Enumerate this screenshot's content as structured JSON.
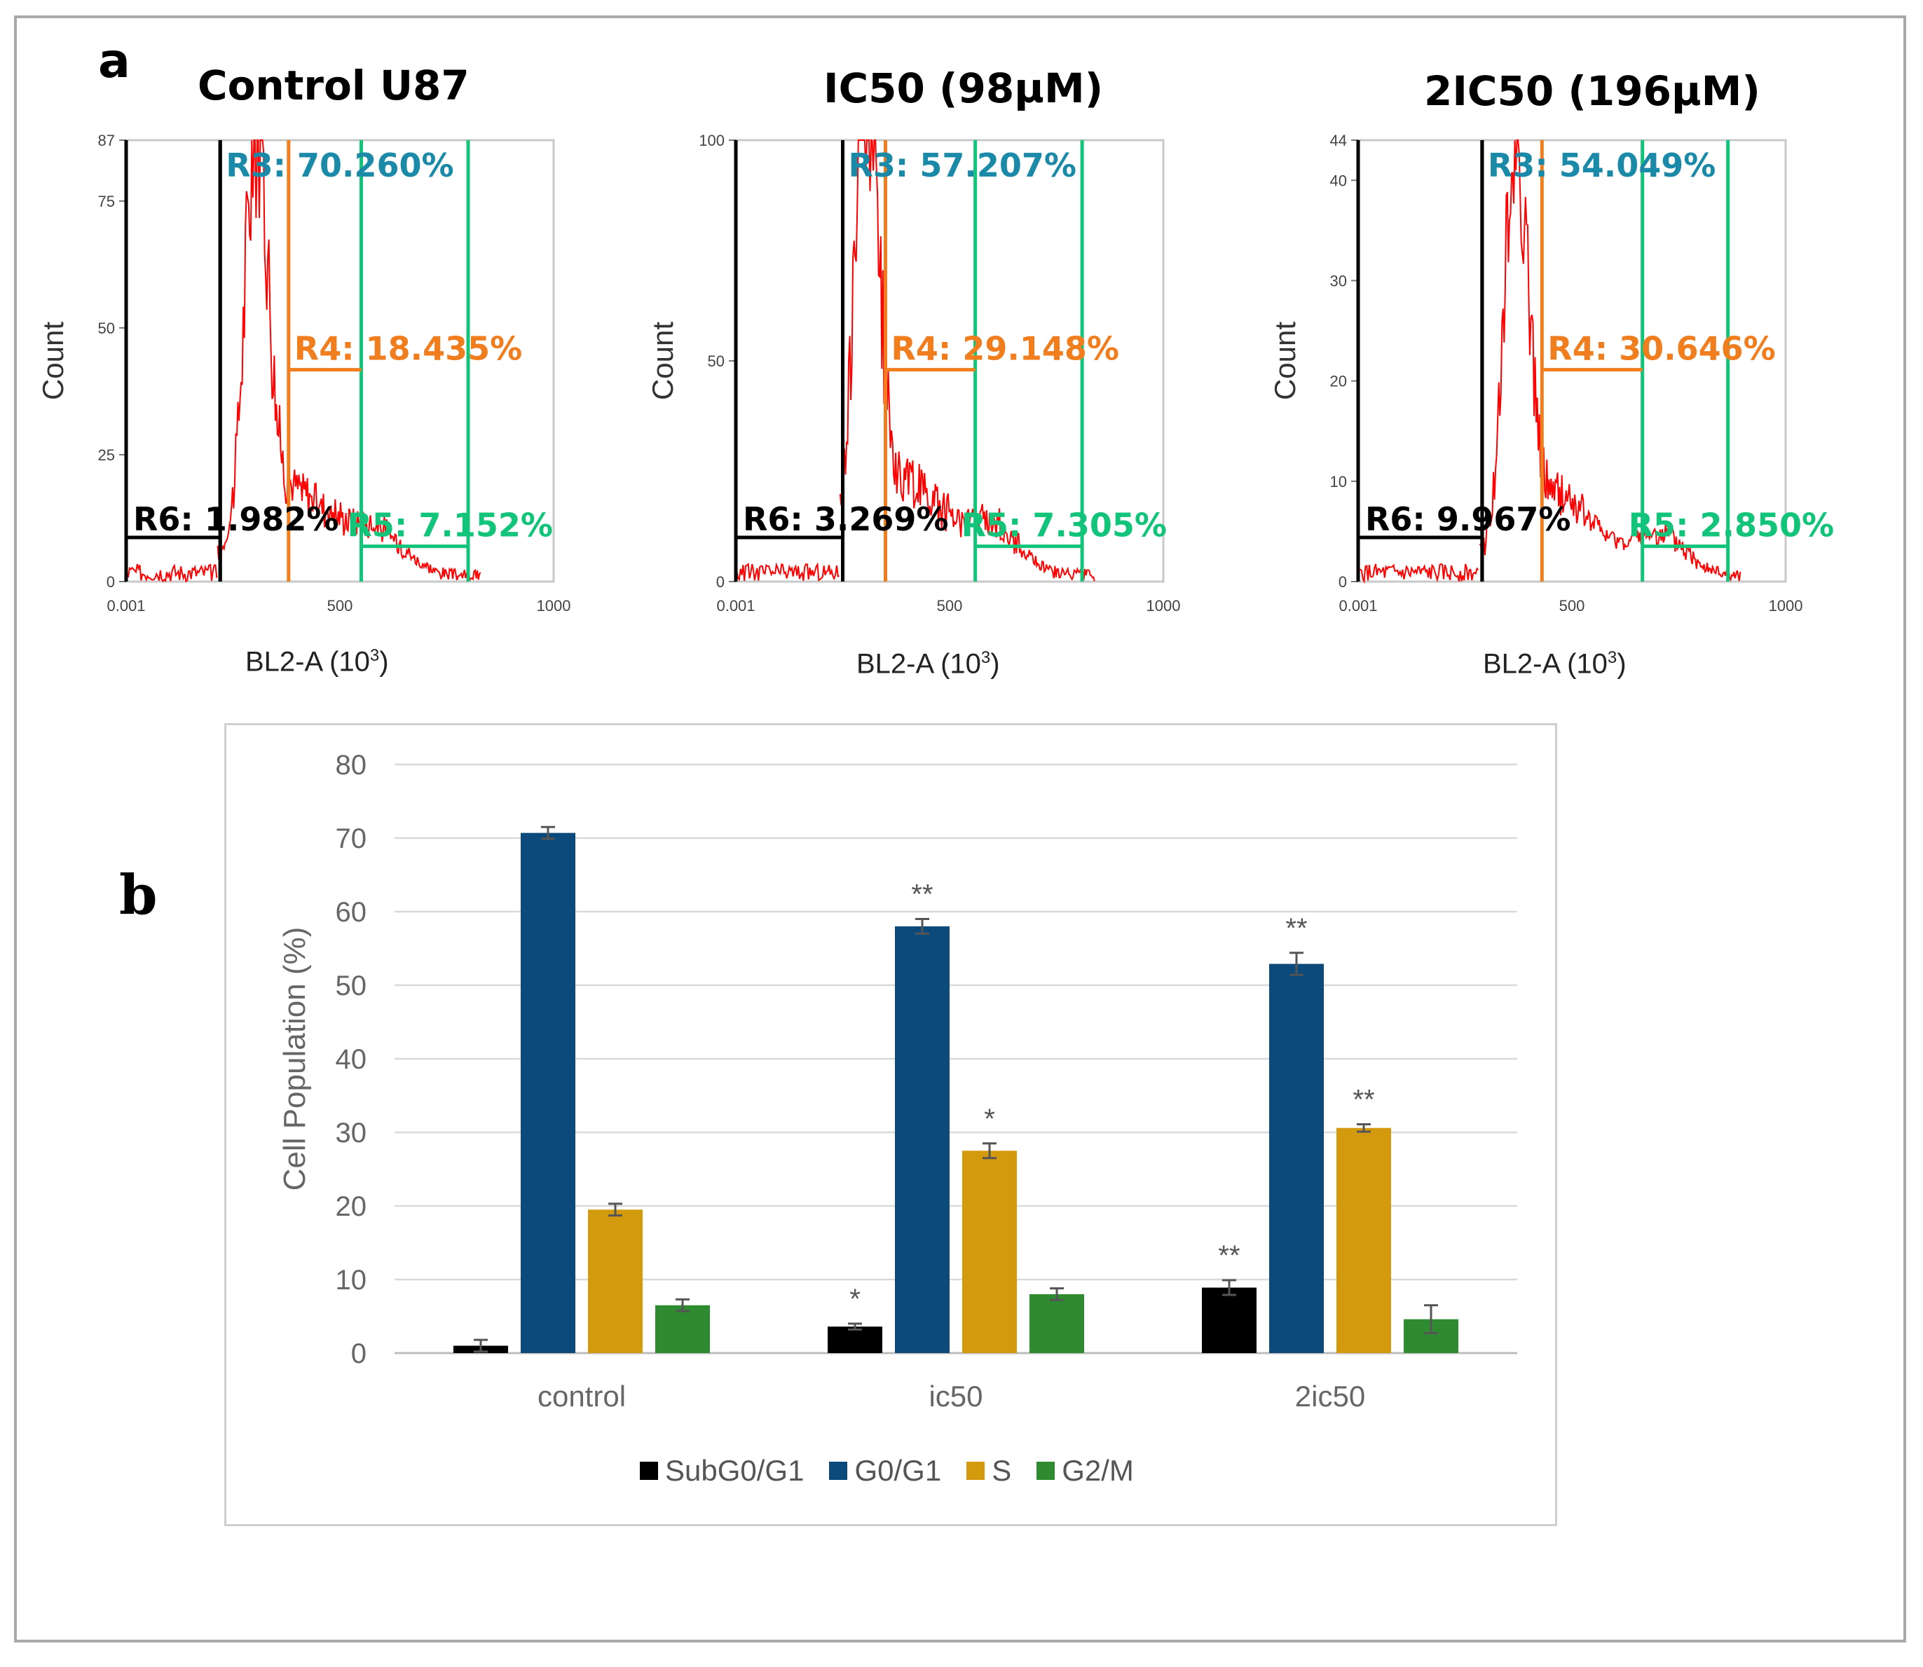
{
  "panel_labels": {
    "a": "a",
    "b": "b"
  },
  "histograms": [
    {
      "title": "Control U87",
      "ylabel": "Count",
      "xlabel": "BL2-A",
      "xunit_base": "10",
      "xunit_exp": "3",
      "xticks": [
        "0.001",
        "500",
        "1000"
      ],
      "yticks": [
        "0",
        "25",
        "50",
        "75",
        "87"
      ],
      "ymax": 87,
      "gates": {
        "R6": "R6: 1.982%",
        "R3": "R3: 70.260%",
        "R4": "R4: 18.435%",
        "R5": "R5: 7.152%"
      },
      "gate_x": [
        0.001,
        220,
        380,
        550,
        800
      ],
      "peak_x": 305,
      "peak_count": 78
    },
    {
      "title": "IC50 (98µM)",
      "ylabel": "Count",
      "xlabel": "BL2-A",
      "xunit_base": "10",
      "xunit_exp": "3",
      "xticks": [
        "0.001",
        "500",
        "1000"
      ],
      "yticks": [
        "0",
        "50",
        "100"
      ],
      "ymax": 100,
      "gates": {
        "R6": "R6: 3.269%",
        "R3": "R3: 57.207%",
        "R4": "R4: 29.148%",
        "R5": "R5: 7.305%"
      },
      "gate_x": [
        0.001,
        250,
        350,
        560,
        810
      ],
      "peak_x": 305,
      "peak_count": 100
    },
    {
      "title": "2IC50 (196µM)",
      "ylabel": "Count",
      "xlabel": "BL2-A",
      "xunit_base": "10",
      "xunit_exp": "3",
      "xticks": [
        "0.001",
        "500",
        "1000"
      ],
      "yticks": [
        "0",
        "10",
        "20",
        "30",
        "40",
        "44"
      ],
      "ymax": 44,
      "gates": {
        "R6": "R6: 9.967%",
        "R3": "R3: 54.049%",
        "R4": "R4: 30.646%",
        "R5": "R5: 2.850%"
      },
      "gate_x": [
        0.001,
        290,
        430,
        665,
        865
      ],
      "peak_x": 370,
      "peak_count": 38
    }
  ],
  "chart_data": {
    "type": "bar",
    "categories": [
      "control",
      "ic50",
      "2ic50"
    ],
    "ylabel": "Cell Population (%)",
    "ylim": [
      0,
      80
    ],
    "yticks": [
      0,
      10,
      20,
      30,
      40,
      50,
      60,
      70,
      80
    ],
    "grid": true,
    "legend_position": "bottom",
    "series": [
      {
        "name": "SubG0/G1",
        "color": "#000000",
        "values": [
          1.0,
          3.6,
          8.9
        ],
        "errors": [
          0.8,
          0.4,
          1.0
        ],
        "annotations": [
          "",
          "*",
          "**"
        ]
      },
      {
        "name": "G0/G1",
        "color": "#0b4a7a",
        "values": [
          70.7,
          58.0,
          52.9
        ],
        "errors": [
          0.8,
          1.0,
          1.5
        ],
        "annotations": [
          "",
          "**",
          "**"
        ]
      },
      {
        "name": "S",
        "color": "#d39a0d",
        "values": [
          19.5,
          27.5,
          30.6
        ],
        "errors": [
          0.8,
          1.0,
          0.5
        ],
        "annotations": [
          "",
          "*",
          "**"
        ]
      },
      {
        "name": "G2/M",
        "color": "#2f8b2f",
        "values": [
          6.5,
          8.0,
          4.6
        ],
        "errors": [
          0.8,
          0.8,
          1.9
        ],
        "annotations": [
          "",
          "",
          ""
        ]
      }
    ]
  }
}
